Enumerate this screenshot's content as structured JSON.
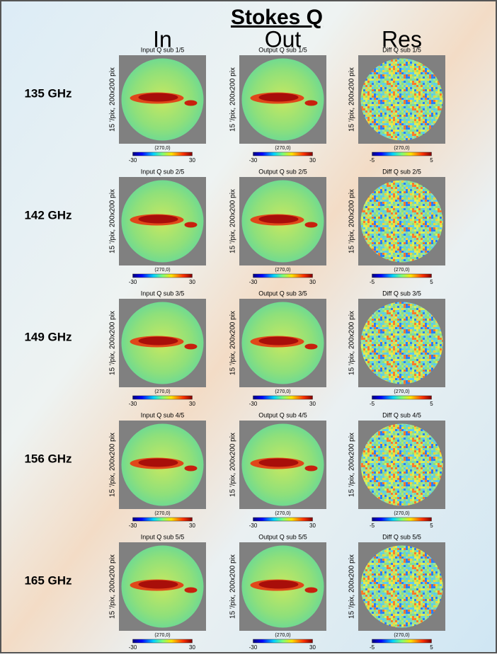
{
  "title": "Stokes Q",
  "columns": [
    "In",
    "Out",
    "Res"
  ],
  "rows": [
    {
      "label": "135 GHz",
      "panels": [
        {
          "title": "Input Q sub 1/5",
          "ylabel": "15 '/pix,  200x200 pix",
          "xlabel": "(270,0)",
          "cbar": [
            -30,
            30
          ]
        },
        {
          "title": "Output Q sub 1/5",
          "ylabel": "15 '/pix,  200x200 pix",
          "xlabel": "(270,0)",
          "cbar": [
            -30,
            30
          ]
        },
        {
          "title": "Diff Q sub 1/5",
          "ylabel": "15 '/pix,  200x200 pix",
          "xlabel": "(270,0)",
          "cbar": [
            -5,
            5
          ]
        }
      ]
    },
    {
      "label": "142 GHz",
      "panels": [
        {
          "title": "Input Q sub 2/5",
          "ylabel": "15 '/pix,  200x200 pix",
          "xlabel": "(270,0)",
          "cbar": [
            -30,
            30
          ]
        },
        {
          "title": "Output Q sub 2/5",
          "ylabel": "15 '/pix,  200x200 pix",
          "xlabel": "(270,0)",
          "cbar": [
            -30,
            30
          ]
        },
        {
          "title": "Diff Q sub 2/5",
          "ylabel": "15 '/pix,  200x200 pix",
          "xlabel": "(270,0)",
          "cbar": [
            -5,
            5
          ]
        }
      ]
    },
    {
      "label": "149 GHz",
      "panels": [
        {
          "title": "Input Q sub 3/5",
          "ylabel": "15 '/pix,  200x200 pix",
          "xlabel": "(270,0)",
          "cbar": [
            -30,
            30
          ]
        },
        {
          "title": "Output Q sub 3/5",
          "ylabel": "15 '/pix,  200x200 pix",
          "xlabel": "(270,0)",
          "cbar": [
            -30,
            30
          ]
        },
        {
          "title": "Diff Q sub 3/5",
          "ylabel": "15 '/pix,  200x200 pix",
          "xlabel": "(270,0)",
          "cbar": [
            -5,
            5
          ]
        }
      ]
    },
    {
      "label": "156 GHz",
      "panels": [
        {
          "title": "Input Q sub 4/5",
          "ylabel": "15 '/pix,  200x200 pix",
          "xlabel": "(270,0)",
          "cbar": [
            -30,
            30
          ]
        },
        {
          "title": "Output Q sub 4/5",
          "ylabel": "15 '/pix,  200x200 pix",
          "xlabel": "(270,0)",
          "cbar": [
            -30,
            30
          ]
        },
        {
          "title": "Diff Q sub 4/5",
          "ylabel": "15 '/pix,  200x200 pix",
          "xlabel": "(270,0)",
          "cbar": [
            -5,
            5
          ]
        }
      ]
    },
    {
      "label": "165 GHz",
      "panels": [
        {
          "title": "Input Q sub 5/5",
          "ylabel": "15 '/pix,  200x200 pix",
          "xlabel": "(270,0)",
          "cbar": [
            -30,
            30
          ]
        },
        {
          "title": "Output Q sub 5/5",
          "ylabel": "15 '/pix,  200x200 pix",
          "xlabel": "(270,0)",
          "cbar": [
            -30,
            30
          ]
        },
        {
          "title": "Diff Q sub 5/5",
          "ylabel": "15 '/pix,  200x200 pix",
          "xlabel": "(270,0)",
          "cbar": [
            -5,
            5
          ]
        }
      ]
    }
  ]
}
